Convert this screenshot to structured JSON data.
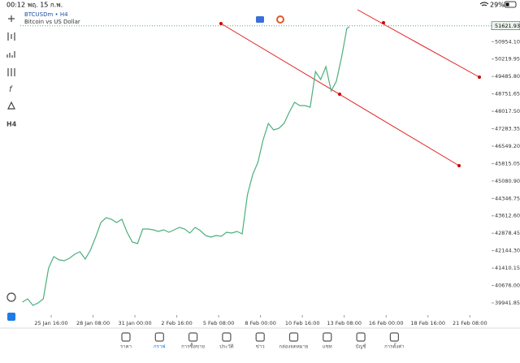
{
  "status_bar": {
    "time": "00:12",
    "date": "พฤ. 15 ก.พ.",
    "battery": "29%"
  },
  "chart_header": {
    "symbol": "BTCUSDm • H4",
    "description": "Bitcoin vs US Dollar"
  },
  "chart_data": {
    "type": "line",
    "color": "#4caf7d",
    "grid": false,
    "x": [
      -11,
      -9,
      -7,
      -5,
      -3,
      -1,
      1,
      3,
      5,
      7,
      9,
      11,
      13,
      15,
      17,
      19,
      21,
      23,
      25,
      27,
      29,
      31,
      33,
      35,
      37,
      39,
      41,
      43,
      45,
      47,
      49,
      51,
      53,
      55,
      57,
      59,
      61,
      63,
      65,
      67,
      69,
      71,
      73,
      75,
      77,
      79,
      81,
      83,
      85,
      87,
      89,
      91,
      93,
      95,
      97,
      99,
      101,
      103,
      105,
      107,
      109,
      111,
      113,
      114
    ],
    "values": [
      39976,
      40113,
      39839,
      39942,
      40113,
      41414,
      41893,
      41756,
      41722,
      41825,
      41996,
      42098,
      41790,
      42167,
      42714,
      43331,
      43536,
      43467,
      43331,
      43467,
      42920,
      42509,
      42441,
      43057,
      43057,
      43023,
      42954,
      43023,
      42920,
      43023,
      43125,
      43057,
      42885,
      43125,
      42988,
      42783,
      42714,
      42783,
      42749,
      42920,
      42885,
      42954,
      42851,
      44494,
      45350,
      45863,
      46822,
      47506,
      47232,
      47301,
      47506,
      47986,
      48396,
      48259,
      48259,
      48191,
      49697,
      49355,
      49903,
      48876,
      49287,
      50314,
      51512,
      51580
    ],
    "last_price": 51621.93,
    "xlim": [
      -11.8,
      168.3
    ],
    "xticks": [
      {
        "value": 0,
        "label": "25 Jan 16:00"
      },
      {
        "value": 16,
        "label": "28 Jan 08:00"
      },
      {
        "value": 32,
        "label": "31 Jan 00:00"
      },
      {
        "value": 48,
        "label": "2 Feb 16:00"
      },
      {
        "value": 64,
        "label": "5 Feb 08:00"
      },
      {
        "value": 80,
        "label": "8 Feb 00:00"
      },
      {
        "value": 96,
        "label": "10 Feb 16:00"
      },
      {
        "value": 112,
        "label": "13 Feb 08:00"
      },
      {
        "value": 128,
        "label": "16 Feb 00:00"
      },
      {
        "value": 144,
        "label": "18 Feb 16:00"
      },
      {
        "value": 160,
        "label": "21 Feb 08:00"
      }
    ],
    "ylim": [
      39428,
      52298
    ],
    "yticks": [
      {
        "value": 50954.1,
        "label": "50954.10"
      },
      50219.95,
      {
        "value": 49485.8,
        "label": "49485.80"
      },
      48751.65,
      {
        "value": 48017.5,
        "label": "48017.50"
      },
      47283.35,
      {
        "value": 46549.2,
        "label": "46549.20"
      },
      45815.05,
      {
        "value": 45080.9,
        "label": "45080.90"
      },
      44346.75,
      {
        "value": 43612.6,
        "label": "43612.60"
      },
      42878.45,
      {
        "value": 42144.3,
        "label": "42144.30"
      },
      41410.15,
      {
        "value": 40676,
        "label": "40676.00"
      },
      39941.85
    ]
  },
  "tab_bar": {
    "items": [
      "ราคา",
      "กราฟ",
      "การซื้อขาย",
      "ประวัติ",
      "ข่าว",
      "กล่องจดหมาย",
      "แชท",
      "บัญชี",
      "การตั้งค่า"
    ]
  }
}
